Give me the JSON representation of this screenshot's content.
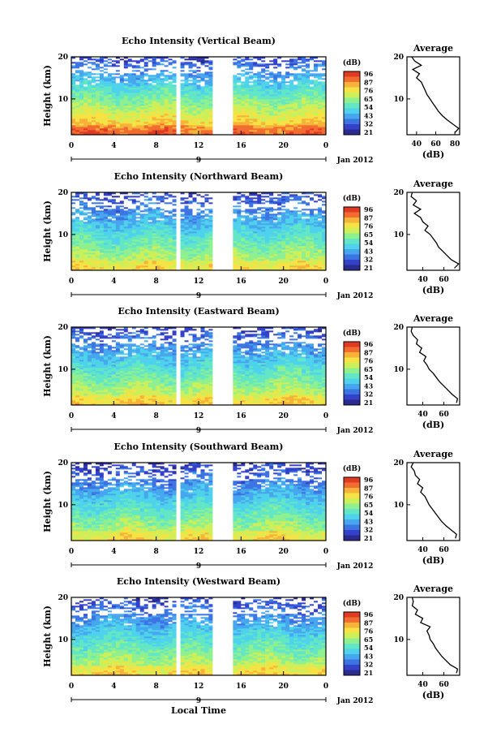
{
  "colors": {
    "scale": [
      "#2b2a8f",
      "#3342c9",
      "#3c74e3",
      "#46a6ee",
      "#4fd2ec",
      "#62e6c5",
      "#8ef08f",
      "#cdf05a",
      "#f5e244",
      "#f7b23a",
      "#f26b2f",
      "#e03a25"
    ],
    "blank": "#ffffff",
    "line": "#000000"
  },
  "x_axis_label": "Local Time",
  "y_axis_label": "Height (km)",
  "colorbar": {
    "unit": "(dB)",
    "ticks": [
      "96",
      "87",
      "76",
      "65",
      "54",
      "43",
      "32",
      "21"
    ]
  },
  "date_label": "Jan 2012",
  "day_label": "9",
  "avg_title": "Average",
  "avg_xlabel": "(dB)",
  "chart_data": [
    {
      "type": "heatmap",
      "title": "Echo Intensity (Vertical Beam)",
      "xlabel": "Local Time",
      "ylabel": "Height (km)",
      "x_ticks": [
        "0",
        "4",
        "8",
        "12",
        "16",
        "20",
        "0"
      ],
      "xlim": [
        0,
        24
      ],
      "ylim": [
        1.5,
        20
      ],
      "y_ticks": [
        "20",
        "10"
      ],
      "data_gaps_hours": [
        [
          10.0,
          10.3
        ],
        [
          13.5,
          15.2
        ]
      ],
      "colorbar_ticks_dB": [
        96,
        87,
        76,
        65,
        54,
        43,
        32,
        21
      ],
      "intensity_profile": {
        "surface_dB": 85,
        "top_dB": 30,
        "strong_layer_km": 3
      },
      "average": {
        "title": "Average",
        "xlabel": "(dB)",
        "x_ticks": [
          "40",
          "60",
          "80"
        ],
        "xlim": [
          30,
          85
        ],
        "y_ticks": [
          "20",
          "10"
        ],
        "ylim": [
          1.5,
          20
        ],
        "height_km": [
          2,
          3,
          4,
          5,
          6,
          7,
          8,
          9,
          10,
          11,
          12,
          13,
          14,
          15,
          16,
          17,
          18,
          19,
          20
        ],
        "values_dB": [
          80,
          84,
          78,
          72,
          67,
          63,
          60,
          57,
          54,
          51,
          49,
          47,
          45,
          40,
          43,
          36,
          45,
          38,
          35
        ]
      }
    },
    {
      "type": "heatmap",
      "title": "Echo Intensity (Northward Beam)",
      "xlabel": "Local Time",
      "ylabel": "Height (km)",
      "x_ticks": [
        "0",
        "4",
        "8",
        "12",
        "16",
        "20",
        "0"
      ],
      "xlim": [
        0,
        24
      ],
      "ylim": [
        1.5,
        20
      ],
      "y_ticks": [
        "20",
        "10"
      ],
      "data_gaps_hours": [
        [
          10.0,
          10.3
        ],
        [
          13.5,
          15.2
        ]
      ],
      "colorbar_ticks_dB": [
        96,
        87,
        76,
        65,
        54,
        43,
        32,
        21
      ],
      "intensity_profile": {
        "surface_dB": 72,
        "top_dB": 30,
        "strong_layer_km": 3
      },
      "average": {
        "title": "Average",
        "xlabel": "(dB)",
        "x_ticks": [
          "40",
          "60"
        ],
        "xlim": [
          25,
          75
        ],
        "y_ticks": [
          "20",
          "10"
        ],
        "ylim": [
          1.5,
          20
        ],
        "height_km": [
          2,
          3,
          4,
          5,
          6,
          7,
          8,
          9,
          10,
          11,
          12,
          13,
          14,
          15,
          16,
          17,
          18,
          19,
          20
        ],
        "values_dB": [
          70,
          74,
          67,
          63,
          59,
          55,
          53,
          50,
          47,
          42,
          45,
          40,
          38,
          32,
          38,
          31,
          34,
          29,
          30
        ]
      }
    },
    {
      "type": "heatmap",
      "title": "Echo Intensity (Eastward Beam)",
      "xlabel": "Local Time",
      "ylabel": "Height (km)",
      "x_ticks": [
        "0",
        "4",
        "8",
        "12",
        "16",
        "20",
        "0"
      ],
      "xlim": [
        0,
        24
      ],
      "ylim": [
        1.5,
        20
      ],
      "y_ticks": [
        "20",
        "10"
      ],
      "data_gaps_hours": [
        [
          10.0,
          10.3
        ],
        [
          13.5,
          15.2
        ]
      ],
      "colorbar_ticks_dB": [
        96,
        87,
        76,
        65,
        54,
        43,
        32,
        21
      ],
      "intensity_profile": {
        "surface_dB": 74,
        "top_dB": 30,
        "strong_layer_km": 3
      },
      "average": {
        "title": "Average",
        "xlabel": "(dB)",
        "x_ticks": [
          "40",
          "60"
        ],
        "xlim": [
          25,
          75
        ],
        "y_ticks": [
          "20",
          "10"
        ],
        "ylim": [
          1.5,
          20
        ],
        "height_km": [
          2,
          3,
          4,
          5,
          6,
          7,
          8,
          9,
          10,
          11,
          12,
          13,
          14,
          15,
          16,
          17,
          18,
          19,
          20
        ],
        "values_dB": [
          72,
          73,
          68,
          64,
          60,
          56,
          53,
          50,
          46,
          44,
          41,
          43,
          37,
          39,
          34,
          35,
          31,
          29,
          30
        ]
      }
    },
    {
      "type": "heatmap",
      "title": "Echo Intensity (Southward Beam)",
      "xlabel": "Local Time",
      "ylabel": "Height (km)",
      "x_ticks": [
        "0",
        "4",
        "8",
        "12",
        "16",
        "20",
        "0"
      ],
      "xlim": [
        0,
        24
      ],
      "ylim": [
        1.5,
        20
      ],
      "y_ticks": [
        "20",
        "10"
      ],
      "data_gaps_hours": [
        [
          10.0,
          10.3
        ],
        [
          13.5,
          15.2
        ]
      ],
      "colorbar_ticks_dB": [
        96,
        87,
        76,
        65,
        54,
        43,
        32,
        21
      ],
      "intensity_profile": {
        "surface_dB": 72,
        "top_dB": 28,
        "strong_layer_km": 3
      },
      "average": {
        "title": "Average",
        "xlabel": "(dB)",
        "x_ticks": [
          "40",
          "60"
        ],
        "xlim": [
          25,
          75
        ],
        "y_ticks": [
          "20",
          "10"
        ],
        "ylim": [
          1.5,
          20
        ],
        "height_km": [
          2,
          3,
          4,
          5,
          6,
          7,
          8,
          9,
          10,
          11,
          12,
          13,
          14,
          15,
          16,
          17,
          18,
          19,
          20
        ],
        "values_dB": [
          71,
          72,
          67,
          62,
          58,
          55,
          52,
          49,
          46,
          44,
          42,
          38,
          40,
          35,
          37,
          33,
          32,
          29,
          31
        ]
      }
    },
    {
      "type": "heatmap",
      "title": "Echo Intensity (Westward Beam)",
      "xlabel": "Local Time",
      "ylabel": "Height (km)",
      "x_ticks": [
        "0",
        "4",
        "8",
        "12",
        "16",
        "20",
        "0"
      ],
      "xlim": [
        0,
        24
      ],
      "ylim": [
        1.5,
        20
      ],
      "y_ticks": [
        "20",
        "10"
      ],
      "data_gaps_hours": [
        [
          10.0,
          10.3
        ],
        [
          13.5,
          15.2
        ]
      ],
      "colorbar_ticks_dB": [
        96,
        87,
        76,
        65,
        54,
        43,
        32,
        21
      ],
      "intensity_profile": {
        "surface_dB": 73,
        "top_dB": 29,
        "strong_layer_km": 3
      },
      "average": {
        "title": "Average",
        "xlabel": "(dB)",
        "x_ticks": [
          "40",
          "60"
        ],
        "xlim": [
          25,
          75
        ],
        "y_ticks": [
          "20",
          "10"
        ],
        "ylim": [
          1.5,
          20
        ],
        "height_km": [
          2,
          3,
          4,
          5,
          6,
          7,
          8,
          9,
          10,
          11,
          12,
          13,
          14,
          15,
          16,
          17,
          18,
          19,
          20
        ],
        "values_dB": [
          72,
          73,
          66,
          62,
          58,
          55,
          52,
          50,
          47,
          46,
          44,
          47,
          38,
          40,
          33,
          35,
          30,
          31,
          30
        ]
      }
    }
  ]
}
